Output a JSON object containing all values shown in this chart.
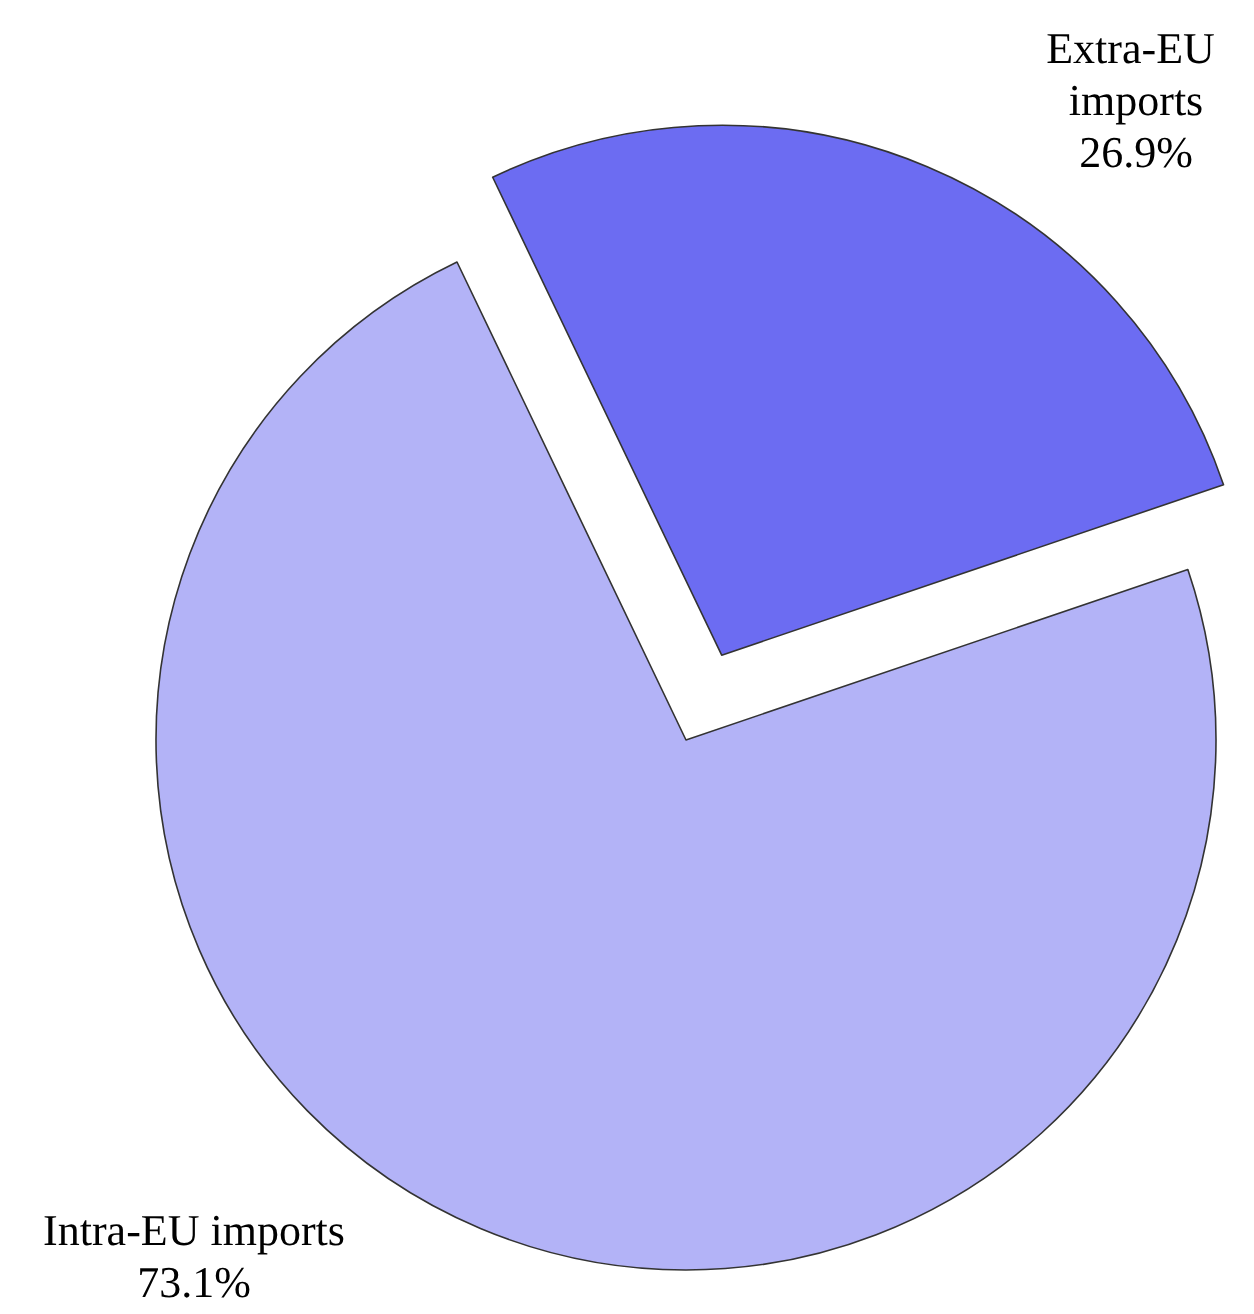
{
  "chart_data": {
    "type": "pie",
    "categories": [
      "Extra-EU imports",
      "Intra-EU imports"
    ],
    "values": [
      26.9,
      73.1
    ],
    "colors": [
      "#6c6cf2",
      "#b3b3f7"
    ],
    "value_labels": [
      "26.9%",
      "73.1%"
    ]
  }
}
